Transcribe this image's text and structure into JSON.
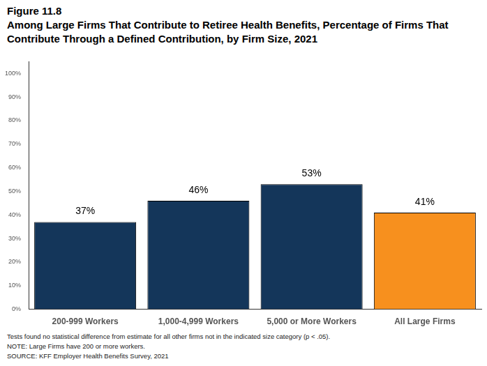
{
  "chart_data": {
    "type": "bar",
    "title": "Figure 11.8",
    "subtitle": "Among Large Firms That Contribute to Retiree Health Benefits, Percentage of Firms That Contribute Through a Defined Contribution, by Firm Size, 2021",
    "categories": [
      "200-999 Workers",
      "1,000-4,999 Workers",
      "5,000 or More Workers",
      "All Large Firms"
    ],
    "values": [
      37,
      46,
      53,
      41
    ],
    "value_labels": [
      "37%",
      "46%",
      "53%",
      "41%"
    ],
    "colors": [
      "#14365a",
      "#14365a",
      "#14365a",
      "#f7901e"
    ],
    "data_labels": true,
    "grid": false,
    "ylim": [
      0,
      105
    ],
    "yticks": [
      {
        "value": 0,
        "label": "0%"
      },
      {
        "value": 10,
        "label": "10%"
      },
      {
        "value": 20,
        "label": "20%"
      },
      {
        "value": 30,
        "label": "30%"
      },
      {
        "value": 40,
        "label": "40%"
      },
      {
        "value": 50,
        "label": "50%"
      },
      {
        "value": 60,
        "label": "60%"
      },
      {
        "value": 70,
        "label": "70%"
      },
      {
        "value": 80,
        "label": "80%"
      },
      {
        "value": 90,
        "label": "90%"
      },
      {
        "value": 100,
        "label": "100%"
      }
    ],
    "annotations": [
      "Tests found no statistical difference from estimate for all other firms not in the indicated size category (p < .05).",
      "NOTE: Large Firms have 200 or more workers.",
      "SOURCE: KFF Employer Health Benefits Survey, 2021"
    ]
  }
}
